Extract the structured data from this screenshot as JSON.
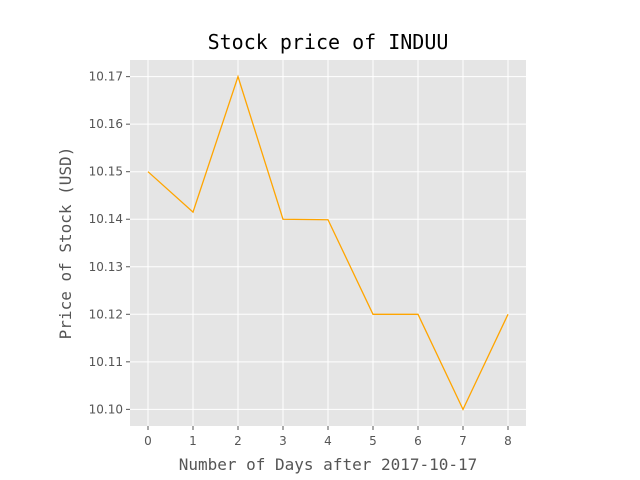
{
  "chart_data": {
    "type": "line",
    "title": "Stock price of INDUU",
    "xlabel": "Number of Days after 2017-10-17",
    "ylabel": "Price of Stock (USD)",
    "x": [
      0,
      1,
      2,
      3,
      4,
      5,
      6,
      7,
      8
    ],
    "series": [
      {
        "values": [
          10.15,
          10.1415,
          10.17,
          10.14,
          10.1399,
          10.12,
          10.12,
          10.1,
          10.12
        ]
      }
    ],
    "xlim": [
      -0.4,
      8.4
    ],
    "ylim": [
      10.0965,
      10.1735
    ],
    "xticks": [
      "0",
      "1",
      "2",
      "3",
      "4",
      "5",
      "6",
      "7",
      "8"
    ],
    "yticks": [
      "10.10",
      "10.11",
      "10.12",
      "10.13",
      "10.14",
      "10.15",
      "10.16",
      "10.17"
    ],
    "grid": true,
    "legend": "none",
    "colors": {
      "line": "#ffa500",
      "background": "#e5e5e5",
      "grid": "#ffffff"
    }
  }
}
